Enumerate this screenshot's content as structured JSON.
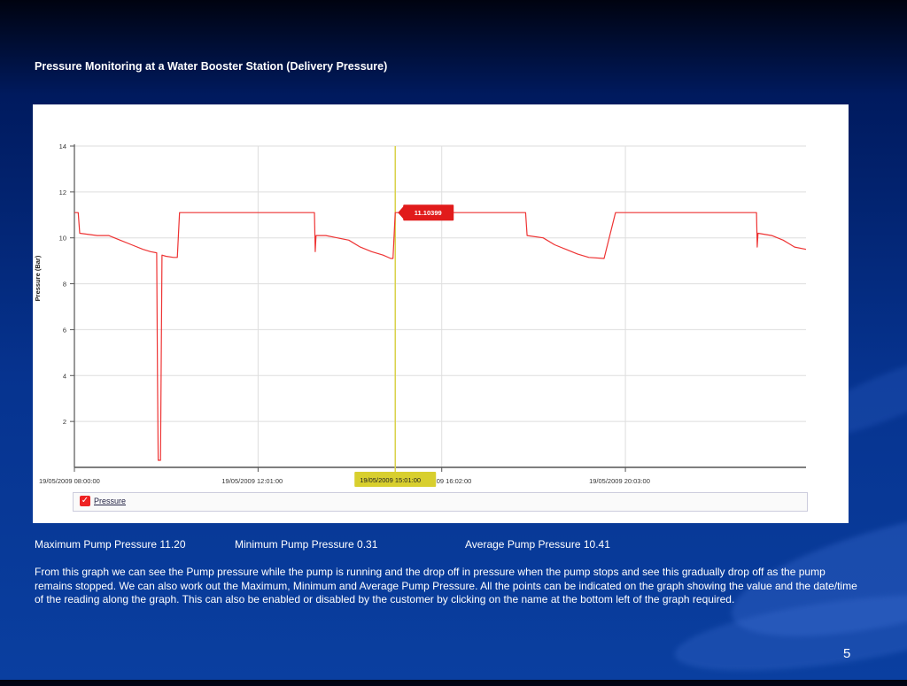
{
  "slide": {
    "title": "Pressure Monitoring at a Water Booster Station (Delivery Pressure)",
    "page_number": "5"
  },
  "stats": {
    "max": "Maximum Pump Pressure 11.20",
    "min": "Minimum Pump Pressure 0.31",
    "avg": "Average Pump Pressure 10.41"
  },
  "description": "From this graph we can see the Pump pressure while the pump is running and the drop off in pressure when the pump stops and see this gradually drop off as the pump remains stopped. We can also work out the Maximum, Minimum and Average Pump Pressure. All the points can be indicated on the graph showing the value and the date/time of the reading along the graph. This can also be enabled or disabled by the customer by clicking on the name at the bottom left of the graph required.",
  "legend": {
    "label": "Pressure",
    "checked": true
  },
  "chart_data": {
    "type": "line",
    "ylabel": "Pressure (Bar)",
    "ylim": [
      0,
      14
    ],
    "yticks": [
      2,
      4,
      6,
      8,
      10,
      12,
      14
    ],
    "xlim": [
      "19/05/2009 08:00:00",
      "19/05/2009 24:00:00"
    ],
    "xticks": [
      {
        "time": "08:00",
        "label": "19/05/2009 08:00:00"
      },
      {
        "time": "12:01",
        "label": "19/05/2009 12:01:00"
      },
      {
        "time": "16:02",
        "label": "09 16:02:00"
      },
      {
        "time": "20:03",
        "label": "19/05/2009 20:03:00"
      }
    ],
    "grid": true,
    "line_color": "#ee3333",
    "cursor": {
      "time": "15:01",
      "value_label": "11.10399",
      "time_label": "19/05/2009 15:01:00",
      "line_color": "#d9d24a",
      "flag_color": "#e11b1b",
      "time_label_color": "#d8cf2e"
    },
    "series": [
      {
        "name": "Pressure",
        "points": [
          [
            "08:00",
            11.1
          ],
          [
            "08:05",
            11.1
          ],
          [
            "08:07",
            10.2
          ],
          [
            "08:30",
            10.1
          ],
          [
            "08:45",
            10.1
          ],
          [
            "09:00",
            9.9
          ],
          [
            "09:15",
            9.7
          ],
          [
            "09:30",
            9.5
          ],
          [
            "09:40",
            9.4
          ],
          [
            "09:48",
            9.35
          ],
          [
            "09:49",
            4.0
          ],
          [
            "09:50",
            0.31
          ],
          [
            "09:53",
            0.31
          ],
          [
            "09:55",
            9.25
          ],
          [
            "10:00",
            9.2
          ],
          [
            "10:10",
            9.15
          ],
          [
            "10:15",
            9.15
          ],
          [
            "10:18",
            11.1
          ],
          [
            "11:00",
            11.1
          ],
          [
            "12:00",
            11.1
          ],
          [
            "13:00",
            11.1
          ],
          [
            "13:15",
            11.1
          ],
          [
            "13:16",
            9.4
          ],
          [
            "13:17",
            10.1
          ],
          [
            "13:30",
            10.1
          ],
          [
            "14:00",
            9.9
          ],
          [
            "14:15",
            9.6
          ],
          [
            "14:30",
            9.4
          ],
          [
            "14:45",
            9.25
          ],
          [
            "14:55",
            9.1
          ],
          [
            "14:58",
            9.1
          ],
          [
            "15:01",
            11.1
          ],
          [
            "15:30",
            11.1
          ],
          [
            "16:00",
            11.1
          ],
          [
            "17:00",
            11.1
          ],
          [
            "17:52",
            11.1
          ],
          [
            "17:54",
            10.1
          ],
          [
            "18:15",
            10.0
          ],
          [
            "18:30",
            9.7
          ],
          [
            "18:45",
            9.5
          ],
          [
            "19:00",
            9.3
          ],
          [
            "19:15",
            9.15
          ],
          [
            "19:35",
            9.1
          ],
          [
            "19:50",
            11.1
          ],
          [
            "20:30",
            11.1
          ],
          [
            "21:00",
            11.1
          ],
          [
            "22:00",
            11.1
          ],
          [
            "22:55",
            11.1
          ],
          [
            "22:56",
            9.6
          ],
          [
            "22:57",
            10.2
          ],
          [
            "23:15",
            10.1
          ],
          [
            "23:30",
            9.9
          ],
          [
            "23:45",
            9.6
          ],
          [
            "24:00",
            9.5
          ]
        ]
      }
    ]
  }
}
